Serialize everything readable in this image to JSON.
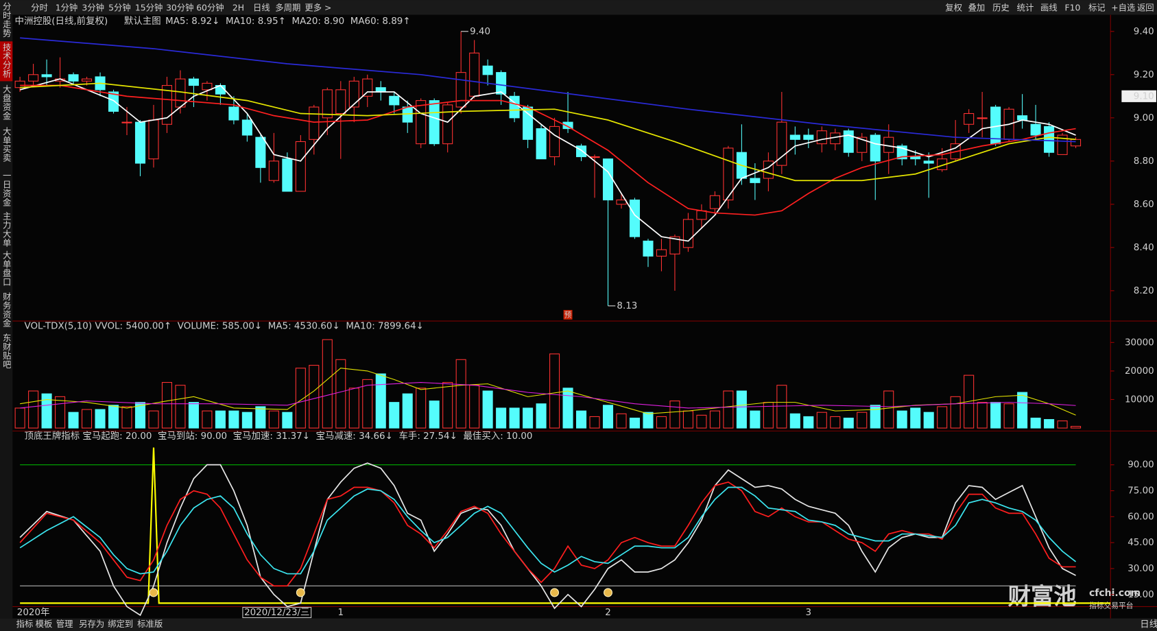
{
  "toolbar": {
    "periods": [
      "分时",
      "1分钟",
      "3分钟",
      "5分钟",
      "15分钟",
      "30分钟",
      "60分钟",
      "2H",
      "日线",
      "多周期",
      "更多 >"
    ],
    "tools": [
      "复权",
      "叠加",
      "历史",
      "统计",
      "画线",
      "F10",
      "标记",
      "+自选",
      "返回"
    ]
  },
  "sidebar": {
    "tabs": [
      "分时走势",
      "技术分析",
      "大盘资金",
      "大单买卖",
      "一日资金",
      "主力大单",
      "大单盘口",
      "财务资金",
      "东财贴吧"
    ]
  },
  "price_panel": {
    "title": "中洲控股(日线,前复权)",
    "template": "默认主图",
    "legend": [
      {
        "text": "MA5: 8.92↓",
        "color": "#ffffff"
      },
      {
        "text": "MA10: 8.95↑",
        "color": "#ff3232"
      },
      {
        "text": "MA20: 8.90",
        "color": "#ffff00"
      },
      {
        "text": "MA60: 8.89↑",
        "color": "#3c3cff"
      }
    ],
    "type": "candlestick",
    "xlim": [
      -0.5,
      81.6
    ],
    "ylim": [
      8.07,
      9.47
    ],
    "yticks": [
      {
        "value": 9.4,
        "label": "9.40"
      },
      {
        "value": 9.2,
        "label": "9.20"
      },
      {
        "value": 9.0,
        "label": "9.00"
      },
      {
        "value": 8.8,
        "label": "8.80"
      },
      {
        "value": 8.6,
        "label": "8.60"
      },
      {
        "value": 8.4,
        "label": "8.40"
      },
      {
        "value": 8.2,
        "label": "8.20"
      }
    ],
    "current_price": {
      "value": 9.1,
      "label": "9.10"
    },
    "up_color": "#ff3232",
    "down_color": "#54fcfc",
    "open": [
      9.14,
      9.17,
      9.2,
      9.17,
      9.2,
      9.17,
      9.19,
      9.12,
      8.98,
      8.98,
      8.81,
      8.97,
      9.05,
      9.18,
      9.13,
      9.15,
      9.05,
      8.99,
      8.91,
      8.71,
      8.81,
      8.66,
      8.9,
      9.0,
      9.02,
      9.05,
      9.1,
      9.14,
      9.1,
      9.05,
      8.88,
      9.08,
      8.88,
      9.05,
      9.1,
      9.24,
      9.21,
      9.1,
      9.05,
      8.95,
      8.82,
      8.98,
      8.87,
      8.82,
      8.81,
      8.6,
      8.62,
      8.43,
      8.36,
      8.37,
      8.4,
      8.53,
      8.58,
      8.62,
      8.84,
      8.72,
      8.72,
      8.78,
      8.92,
      8.92,
      8.88,
      8.88,
      8.94,
      8.84,
      8.92,
      8.84,
      8.87,
      8.82,
      8.8,
      8.76,
      8.81,
      8.97,
      9.0,
      9.05,
      8.9,
      9.01,
      8.97,
      8.96,
      8.83,
      8.87
    ],
    "high": [
      9.19,
      9.25,
      9.27,
      9.28,
      9.21,
      9.19,
      9.21,
      9.13,
      9.05,
      8.99,
      9.06,
      9.19,
      9.22,
      9.19,
      9.17,
      9.16,
      9.1,
      9.02,
      8.92,
      8.93,
      8.84,
      8.92,
      9.06,
      9.14,
      9.17,
      9.19,
      9.2,
      9.17,
      9.12,
      9.08,
      9.09,
      9.09,
      9.07,
      9.4,
      9.36,
      9.27,
      9.22,
      9.12,
      9.06,
      8.97,
      9.0,
      9.12,
      8.88,
      8.83,
      8.81,
      8.65,
      8.63,
      8.44,
      8.44,
      8.46,
      8.56,
      8.6,
      8.66,
      8.87,
      8.97,
      8.79,
      8.84,
      9.12,
      8.96,
      8.95,
      8.96,
      8.95,
      8.95,
      8.93,
      8.93,
      8.97,
      8.88,
      8.85,
      8.84,
      8.86,
      8.99,
      9.04,
      9.12,
      9.06,
      9.05,
      9.11,
      9.06,
      8.98,
      8.93,
      8.91
    ],
    "low": [
      9.12,
      9.15,
      9.15,
      9.14,
      9.15,
      9.15,
      9.1,
      9.02,
      8.92,
      8.73,
      8.77,
      8.93,
      9.02,
      9.05,
      9.08,
      9.06,
      8.97,
      8.89,
      8.7,
      8.7,
      8.66,
      8.66,
      8.83,
      8.92,
      8.81,
      8.98,
      9.05,
      9.08,
      9.02,
      8.93,
      8.86,
      8.87,
      8.84,
      9.02,
      9.09,
      9.15,
      9.06,
      8.98,
      8.86,
      8.81,
      8.78,
      8.93,
      8.8,
      8.63,
      8.13,
      8.58,
      8.44,
      8.31,
      8.29,
      8.2,
      8.38,
      8.49,
      8.55,
      8.58,
      8.69,
      8.62,
      8.66,
      8.74,
      8.83,
      8.86,
      8.84,
      8.85,
      8.82,
      8.8,
      8.62,
      8.74,
      8.78,
      8.78,
      8.63,
      8.75,
      8.8,
      8.93,
      8.91,
      8.87,
      8.89,
      8.95,
      8.9,
      8.82,
      8.83,
      8.86
    ],
    "close": [
      9.17,
      9.2,
      9.19,
      9.18,
      9.17,
      9.18,
      9.13,
      9.03,
      8.98,
      8.79,
      8.99,
      9.15,
      9.18,
      9.15,
      9.16,
      9.11,
      8.99,
      8.92,
      8.77,
      8.8,
      8.66,
      8.89,
      9.05,
      9.13,
      9.13,
      9.17,
      9.18,
      9.12,
      9.06,
      8.98,
      9.08,
      8.88,
      9.06,
      9.21,
      9.3,
      9.2,
      9.11,
      9.0,
      8.9,
      8.81,
      8.96,
      8.95,
      8.82,
      8.82,
      8.62,
      8.62,
      8.45,
      8.36,
      8.39,
      8.45,
      8.53,
      8.57,
      8.64,
      8.86,
      8.72,
      8.7,
      8.8,
      8.98,
      8.9,
      8.9,
      8.94,
      8.93,
      8.84,
      8.91,
      8.8,
      8.91,
      8.81,
      8.81,
      8.79,
      8.81,
      8.88,
      9.02,
      9.0,
      8.88,
      9.04,
      8.99,
      8.92,
      8.84,
      8.92,
      8.9
    ],
    "annotations": [
      {
        "index": 33,
        "label": "9.40",
        "at": "high"
      },
      {
        "index": 44,
        "label": "8.13",
        "at": "low"
      }
    ],
    "forecast_marker": {
      "index": 41,
      "label": "预"
    },
    "series": [
      {
        "color": "#ffffff",
        "x": [
          0,
          3,
          7,
          9,
          11,
          13,
          15,
          17,
          19,
          21,
          23,
          26,
          28,
          30,
          32,
          34,
          36,
          38,
          40,
          42,
          44,
          46,
          48,
          50,
          52,
          54,
          56,
          58,
          60,
          62,
          64,
          66,
          68,
          70,
          72,
          74,
          75,
          77,
          79
        ],
        "values": [
          9.13,
          9.18,
          9.08,
          8.98,
          9.0,
          9.1,
          9.15,
          9.02,
          8.83,
          8.8,
          8.95,
          9.12,
          9.12,
          9.02,
          8.98,
          9.1,
          9.12,
          9.02,
          8.92,
          8.85,
          8.75,
          8.55,
          8.45,
          8.43,
          8.55,
          8.72,
          8.77,
          8.87,
          8.9,
          8.92,
          8.88,
          8.86,
          8.82,
          8.86,
          8.95,
          8.97,
          8.99,
          8.97,
          8.92
        ]
      },
      {
        "color": "#ff2020",
        "x": [
          0,
          3,
          8,
          12,
          16,
          19,
          22,
          26,
          29,
          33,
          36,
          38,
          41,
          44,
          47,
          50,
          52,
          55,
          57,
          59,
          61,
          63,
          66,
          69,
          72,
          75,
          77,
          79
        ],
        "values": [
          9.15,
          9.15,
          9.1,
          9.08,
          9.06,
          9.01,
          8.98,
          8.99,
          9.05,
          9.08,
          9.08,
          9.05,
          8.96,
          8.85,
          8.7,
          8.58,
          8.56,
          8.55,
          8.57,
          8.65,
          8.72,
          8.77,
          8.82,
          8.83,
          8.87,
          8.9,
          8.93,
          8.95
        ]
      },
      {
        "color": "#e6e600",
        "x": [
          0,
          6,
          12,
          17,
          21,
          26,
          33,
          40,
          44,
          49,
          54,
          58,
          63,
          67,
          71,
          74,
          77,
          79
        ],
        "values": [
          9.14,
          9.16,
          9.12,
          9.08,
          9.02,
          9.01,
          9.03,
          9.04,
          8.99,
          8.89,
          8.78,
          8.71,
          8.71,
          8.74,
          8.82,
          8.88,
          8.91,
          8.9
        ]
      },
      {
        "color": "#2a2ad8",
        "x": [
          0,
          10,
          20,
          30,
          40,
          50,
          60,
          70,
          79
        ],
        "values": [
          9.37,
          9.32,
          9.25,
          9.2,
          9.12,
          9.04,
          8.97,
          8.91,
          8.89
        ]
      }
    ]
  },
  "volume_panel": {
    "legend": [
      {
        "text": "VOL-TDX(5,10) VVOL: 5400.00↑",
        "color": "#ffffff"
      },
      {
        "text": "VOLUME: 585.00↓",
        "color": "#e6e600"
      },
      {
        "text": "MA5: 4530.60↓",
        "color": "#e6e600"
      },
      {
        "text": "MA10: 7899.64↓",
        "color": "#e020e0"
      }
    ],
    "ylim": [
      0,
      37000
    ],
    "yticks": [
      30000,
      20000,
      10000
    ],
    "values": [
      7000,
      13000,
      12000,
      11000,
      5500,
      6500,
      6500,
      8000,
      7500,
      9000,
      6000,
      16000,
      15000,
      9000,
      6000,
      6000,
      6000,
      5500,
      7500,
      6000,
      5500,
      21000,
      22000,
      31000,
      24000,
      14000,
      17000,
      19000,
      9000,
      12000,
      14000,
      9500,
      16000,
      24000,
      15000,
      13000,
      7000,
      7000,
      7000,
      8500,
      26000,
      14000,
      6000,
      4000,
      8000,
      5000,
      3500,
      5500,
      4000,
      9500,
      6000,
      4500,
      6000,
      13000,
      13000,
      6000,
      9000,
      15000,
      5000,
      4000,
      5500,
      4000,
      3500,
      5500,
      8000,
      13000,
      6000,
      7000,
      5500,
      7500,
      11000,
      18500,
      9000,
      9000,
      8500,
      12500,
      3500,
      3000,
      2500,
      585
    ],
    "series": [
      {
        "color": "#e6e600",
        "x": [
          0,
          2,
          5,
          8,
          11,
          13,
          16,
          20,
          22,
          24,
          26,
          28,
          30,
          33,
          35,
          38,
          41,
          44,
          47,
          50,
          53,
          56,
          58,
          61,
          64,
          67,
          70,
          73,
          75,
          77,
          79
        ],
        "values": [
          8500,
          10000,
          9000,
          7000,
          9500,
          11000,
          7000,
          6500,
          13000,
          21000,
          20000,
          17000,
          13500,
          15000,
          15500,
          11000,
          13000,
          9000,
          5000,
          6000,
          7500,
          9000,
          9000,
          6000,
          6500,
          8000,
          8500,
          11000,
          11500,
          8500,
          4530.6
        ]
      },
      {
        "color": "#e020e0",
        "x": [
          0,
          5,
          10,
          15,
          20,
          23,
          26,
          30,
          34,
          38,
          42,
          46,
          50,
          55,
          60,
          65,
          70,
          74,
          77,
          79
        ],
        "values": [
          7000,
          9500,
          8500,
          8500,
          8000,
          11500,
          15000,
          16000,
          15000,
          12500,
          11000,
          8500,
          7000,
          7500,
          8000,
          7500,
          8500,
          9000,
          8500,
          7899.64
        ]
      }
    ]
  },
  "indicator_panel": {
    "legend": [
      {
        "text": "顶底王牌指标 宝马起跑: 20.00",
        "color": "#ffffff"
      },
      {
        "text": "宝马到站: 90.00",
        "color": "#00d000"
      },
      {
        "text": "宝马加速: 31.37↓",
        "color": "#ff3232"
      },
      {
        "text": "宝马减速: 34.66↓",
        "color": "#54fcfc"
      },
      {
        "text": "车手: 27.54↓",
        "color": "#c8c8c8"
      },
      {
        "text": "最佳买入: 10.00",
        "color": "#ffff00"
      }
    ],
    "ylim": [
      8,
      107
    ],
    "yticks": [
      {
        "value": 90,
        "label": "90.00"
      },
      {
        "value": 75,
        "label": "75.00"
      },
      {
        "value": 60,
        "label": "60.00"
      },
      {
        "value": 45,
        "label": "45.00"
      },
      {
        "value": 30,
        "label": "30.00"
      },
      {
        "value": 15,
        "label": "15.00"
      }
    ],
    "levels": [
      {
        "value": 90,
        "color": "#00b000"
      },
      {
        "value": 20,
        "color": "#b4b4b4"
      }
    ],
    "x": [
      0,
      2,
      4,
      6,
      7,
      8,
      9,
      10,
      11,
      12,
      13,
      14,
      15,
      16,
      17,
      18,
      19,
      20,
      21,
      22,
      23,
      24,
      25,
      26,
      27,
      28,
      29,
      30,
      31,
      32,
      33,
      34,
      35,
      36,
      37,
      38,
      39,
      40,
      41,
      42,
      43,
      44,
      45,
      46,
      47,
      48,
      49,
      50,
      51,
      52,
      53,
      54,
      55,
      56,
      57,
      58,
      59,
      60,
      61,
      62,
      63,
      64,
      65,
      66,
      67,
      68,
      69,
      70,
      71,
      72,
      73,
      74,
      75,
      76,
      77,
      78,
      79
    ],
    "series": [
      {
        "color": "#e6e6e6",
        "values": [
          48,
          63,
          58,
          40,
          20,
          8,
          3,
          20,
          45,
          65,
          82,
          90,
          90,
          75,
          55,
          25,
          15,
          8,
          10,
          40,
          70,
          80,
          88,
          91,
          88,
          78,
          62,
          58,
          40,
          50,
          62,
          65,
          64,
          55,
          40,
          30,
          20,
          7,
          15,
          8,
          18,
          30,
          35,
          28,
          28,
          30,
          35,
          45,
          58,
          78,
          87,
          82,
          77,
          78,
          76,
          70,
          66,
          64,
          62,
          55,
          40,
          28,
          42,
          48,
          50,
          48,
          48,
          68,
          78,
          77,
          70,
          74,
          78,
          60,
          42,
          30,
          26
        ]
      },
      {
        "color": "#ff1e1e",
        "values": [
          45,
          62,
          58,
          45,
          35,
          25,
          23,
          35,
          55,
          70,
          75,
          73,
          65,
          50,
          35,
          25,
          20,
          20,
          30,
          50,
          70,
          72,
          77,
          77,
          75,
          68,
          55,
          50,
          42,
          52,
          63,
          66,
          62,
          50,
          40,
          30,
          22,
          30,
          43,
          32,
          30,
          35,
          45,
          48,
          45,
          43,
          43,
          55,
          68,
          78,
          80,
          75,
          63,
          60,
          65,
          60,
          57,
          57,
          52,
          47,
          45,
          40,
          50,
          52,
          50,
          50,
          47,
          62,
          73,
          73,
          65,
          62,
          62,
          50,
          36,
          31,
          31
        ]
      },
      {
        "color": "#3ce6f0",
        "values": [
          42,
          52,
          60,
          48,
          38,
          30,
          27,
          28,
          40,
          55,
          65,
          70,
          72,
          65,
          50,
          38,
          30,
          27,
          27,
          40,
          58,
          65,
          72,
          76,
          75,
          70,
          60,
          52,
          45,
          48,
          55,
          62,
          66,
          62,
          52,
          42,
          33,
          28,
          32,
          37,
          34,
          33,
          38,
          43,
          43,
          42,
          42,
          48,
          60,
          70,
          77,
          77,
          72,
          65,
          64,
          63,
          58,
          57,
          55,
          50,
          48,
          46,
          46,
          50,
          50,
          49,
          48,
          55,
          68,
          70,
          68,
          65,
          63,
          58,
          48,
          40,
          34
        ]
      }
    ],
    "buy_line": {
      "color": "#ffff00",
      "x": [
        0,
        9.6,
        10,
        10.4,
        81.6
      ],
      "values": [
        10,
        10,
        100,
        10,
        10
      ]
    },
    "signals": [
      10,
      21,
      40,
      44
    ]
  },
  "x_axis": {
    "labels": [
      {
        "index": 0,
        "label": "2020年"
      },
      {
        "index": 17,
        "label": "2020/12/23/三"
      },
      {
        "index": 24,
        "label": "1"
      },
      {
        "index": 44,
        "label": "2"
      },
      {
        "index": 59,
        "label": "3"
      }
    ]
  },
  "bottom_tabs": [
    "指标",
    "模板",
    "管理",
    "另存为",
    "绑定到",
    "标准版"
  ],
  "period_label": "日线",
  "watermark": {
    "logo": "财富池",
    "site": "cfchi.com",
    "slogan": "指标交易平台"
  }
}
